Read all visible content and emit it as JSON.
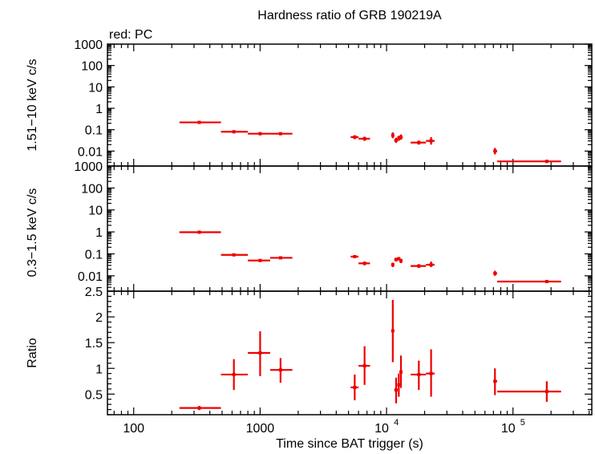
{
  "chart_data": {
    "type": "scatter",
    "title": "Hardness ratio of GRB 190219A",
    "subtitle": "red: PC",
    "xlabel": "Time since BAT trigger (s)",
    "x_scale": "log",
    "xlim": [
      62,
      420000
    ],
    "x_ticks": [
      {
        "value": 100,
        "label": "100",
        "base": "",
        "exp": ""
      },
      {
        "value": 1000,
        "label": "1000",
        "base": "",
        "exp": ""
      },
      {
        "value": 10000,
        "label": "",
        "base": "10",
        "exp": "4"
      },
      {
        "value": 100000,
        "label": "",
        "base": "10",
        "exp": "5"
      }
    ],
    "series_color": "#ee0000",
    "panels": [
      {
        "id": "hard",
        "ylabel": "1.51−10 keV c/s",
        "y_scale": "log",
        "ylim": [
          0.002,
          1000
        ],
        "y_ticks": [
          {
            "value": 1000,
            "label": "1000"
          },
          {
            "value": 100,
            "label": "100"
          },
          {
            "value": 10,
            "label": "10"
          },
          {
            "value": 1,
            "label": "1"
          },
          {
            "value": 0.1,
            "label": "0.1"
          },
          {
            "value": 0.01,
            "label": "0.01"
          }
        ],
        "points": [
          {
            "x": 330,
            "xmin": 230,
            "xmax": 490,
            "y": 0.22,
            "ymin": 0.19,
            "ymax": 0.25
          },
          {
            "x": 620,
            "xmin": 490,
            "xmax": 800,
            "y": 0.08,
            "ymin": 0.068,
            "ymax": 0.094
          },
          {
            "x": 1000,
            "xmin": 800,
            "xmax": 1200,
            "y": 0.065,
            "ymin": 0.055,
            "ymax": 0.076
          },
          {
            "x": 1450,
            "xmin": 1200,
            "xmax": 1800,
            "y": 0.065,
            "ymin": 0.056,
            "ymax": 0.075
          },
          {
            "x": 5600,
            "xmin": 5200,
            "xmax": 6000,
            "y": 0.045,
            "ymin": 0.036,
            "ymax": 0.055
          },
          {
            "x": 6700,
            "xmin": 6000,
            "xmax": 7400,
            "y": 0.038,
            "ymin": 0.03,
            "ymax": 0.047
          },
          {
            "x": 11200,
            "xmin": 10900,
            "xmax": 11500,
            "y": 0.055,
            "ymin": 0.04,
            "ymax": 0.075
          },
          {
            "x": 11900,
            "xmin": 11500,
            "xmax": 12200,
            "y": 0.032,
            "ymin": 0.024,
            "ymax": 0.042
          },
          {
            "x": 12500,
            "xmin": 12200,
            "xmax": 12800,
            "y": 0.04,
            "ymin": 0.03,
            "ymax": 0.052
          },
          {
            "x": 13000,
            "xmin": 12800,
            "xmax": 13300,
            "y": 0.045,
            "ymin": 0.034,
            "ymax": 0.06
          },
          {
            "x": 18000,
            "xmin": 15500,
            "xmax": 20500,
            "y": 0.025,
            "ymin": 0.02,
            "ymax": 0.031
          },
          {
            "x": 22500,
            "xmin": 20500,
            "xmax": 24000,
            "y": 0.03,
            "ymin": 0.02,
            "ymax": 0.045
          },
          {
            "x": 72000,
            "xmin": 70000,
            "xmax": 75000,
            "y": 0.01,
            "ymin": 0.007,
            "ymax": 0.014
          },
          {
            "x": 185000,
            "xmin": 75000,
            "xmax": 240000,
            "y": 0.0033,
            "ymin": 0.0028,
            "ymax": 0.0039
          }
        ]
      },
      {
        "id": "soft",
        "ylabel": "0.3−1.5 keV c/s",
        "y_scale": "log",
        "ylim": [
          0.002,
          1000
        ],
        "y_ticks": [
          {
            "value": 1000,
            "label": "1000"
          },
          {
            "value": 100,
            "label": "100"
          },
          {
            "value": 10,
            "label": "10"
          },
          {
            "value": 1,
            "label": "1"
          },
          {
            "value": 0.1,
            "label": "0.1"
          },
          {
            "value": 0.01,
            "label": "0.01"
          }
        ],
        "points": [
          {
            "x": 330,
            "xmin": 230,
            "xmax": 490,
            "y": 0.97,
            "ymin": 0.9,
            "ymax": 1.05
          },
          {
            "x": 620,
            "xmin": 490,
            "xmax": 800,
            "y": 0.09,
            "ymin": 0.08,
            "ymax": 0.1
          },
          {
            "x": 1000,
            "xmin": 800,
            "xmax": 1200,
            "y": 0.05,
            "ymin": 0.043,
            "ymax": 0.058
          },
          {
            "x": 1450,
            "xmin": 1200,
            "xmax": 1800,
            "y": 0.066,
            "ymin": 0.058,
            "ymax": 0.075
          },
          {
            "x": 5600,
            "xmin": 5200,
            "xmax": 6000,
            "y": 0.075,
            "ymin": 0.064,
            "ymax": 0.088
          },
          {
            "x": 6700,
            "xmin": 6000,
            "xmax": 7400,
            "y": 0.037,
            "ymin": 0.03,
            "ymax": 0.045
          },
          {
            "x": 11200,
            "xmin": 10900,
            "xmax": 11500,
            "y": 0.032,
            "ymin": 0.025,
            "ymax": 0.04
          },
          {
            "x": 11900,
            "xmin": 11500,
            "xmax": 12200,
            "y": 0.055,
            "ymin": 0.045,
            "ymax": 0.067
          },
          {
            "x": 12500,
            "xmin": 12200,
            "xmax": 12800,
            "y": 0.06,
            "ymin": 0.05,
            "ymax": 0.072
          },
          {
            "x": 13000,
            "xmin": 12800,
            "xmax": 13300,
            "y": 0.048,
            "ymin": 0.038,
            "ymax": 0.06
          },
          {
            "x": 18000,
            "xmin": 15500,
            "xmax": 20500,
            "y": 0.028,
            "ymin": 0.023,
            "ymax": 0.034
          },
          {
            "x": 22500,
            "xmin": 20500,
            "xmax": 24000,
            "y": 0.032,
            "ymin": 0.025,
            "ymax": 0.045
          },
          {
            "x": 72000,
            "xmin": 70000,
            "xmax": 75000,
            "y": 0.013,
            "ymin": 0.01,
            "ymax": 0.017
          },
          {
            "x": 185000,
            "xmin": 75000,
            "xmax": 240000,
            "y": 0.0055,
            "ymin": 0.005,
            "ymax": 0.006
          }
        ]
      },
      {
        "id": "ratio",
        "ylabel": "Ratio",
        "y_scale": "linear",
        "ylim": [
          0.1,
          2.5
        ],
        "y_ticks": [
          {
            "value": 2.5,
            "label": "2.5"
          },
          {
            "value": 2,
            "label": "2"
          },
          {
            "value": 1.5,
            "label": "1.5"
          },
          {
            "value": 1,
            "label": "1"
          },
          {
            "value": 0.5,
            "label": "0.5"
          }
        ],
        "points": [
          {
            "x": 330,
            "xmin": 230,
            "xmax": 490,
            "y": 0.23,
            "ymin": 0.19,
            "ymax": 0.27
          },
          {
            "x": 620,
            "xmin": 490,
            "xmax": 800,
            "y": 0.88,
            "ymin": 0.58,
            "ymax": 1.18
          },
          {
            "x": 1000,
            "xmin": 800,
            "xmax": 1200,
            "y": 1.3,
            "ymin": 0.85,
            "ymax": 1.72
          },
          {
            "x": 1450,
            "xmin": 1200,
            "xmax": 1800,
            "y": 0.97,
            "ymin": 0.72,
            "ymax": 1.2
          },
          {
            "x": 5600,
            "xmin": 5200,
            "xmax": 6000,
            "y": 0.63,
            "ymin": 0.38,
            "ymax": 0.88
          },
          {
            "x": 6700,
            "xmin": 6000,
            "xmax": 7400,
            "y": 1.05,
            "ymin": 0.68,
            "ymax": 1.43
          },
          {
            "x": 11200,
            "xmin": 10900,
            "xmax": 11500,
            "y": 1.73,
            "ymin": 1.12,
            "ymax": 2.33
          },
          {
            "x": 11900,
            "xmin": 11500,
            "xmax": 12200,
            "y": 0.58,
            "ymin": 0.32,
            "ymax": 0.82
          },
          {
            "x": 12500,
            "xmin": 12200,
            "xmax": 12800,
            "y": 0.68,
            "ymin": 0.45,
            "ymax": 0.9
          },
          {
            "x": 13000,
            "xmin": 12800,
            "xmax": 13300,
            "y": 0.93,
            "ymin": 0.62,
            "ymax": 1.25
          },
          {
            "x": 18000,
            "xmin": 15500,
            "xmax": 20500,
            "y": 0.88,
            "ymin": 0.58,
            "ymax": 1.15
          },
          {
            "x": 22500,
            "xmin": 20500,
            "xmax": 24000,
            "y": 0.9,
            "ymin": 0.45,
            "ymax": 1.37
          },
          {
            "x": 72000,
            "xmin": 70000,
            "xmax": 75000,
            "y": 0.75,
            "ymin": 0.48,
            "ymax": 1.0
          },
          {
            "x": 185000,
            "xmin": 75000,
            "xmax": 240000,
            "y": 0.55,
            "ymin": 0.35,
            "ymax": 0.75
          }
        ]
      }
    ]
  }
}
